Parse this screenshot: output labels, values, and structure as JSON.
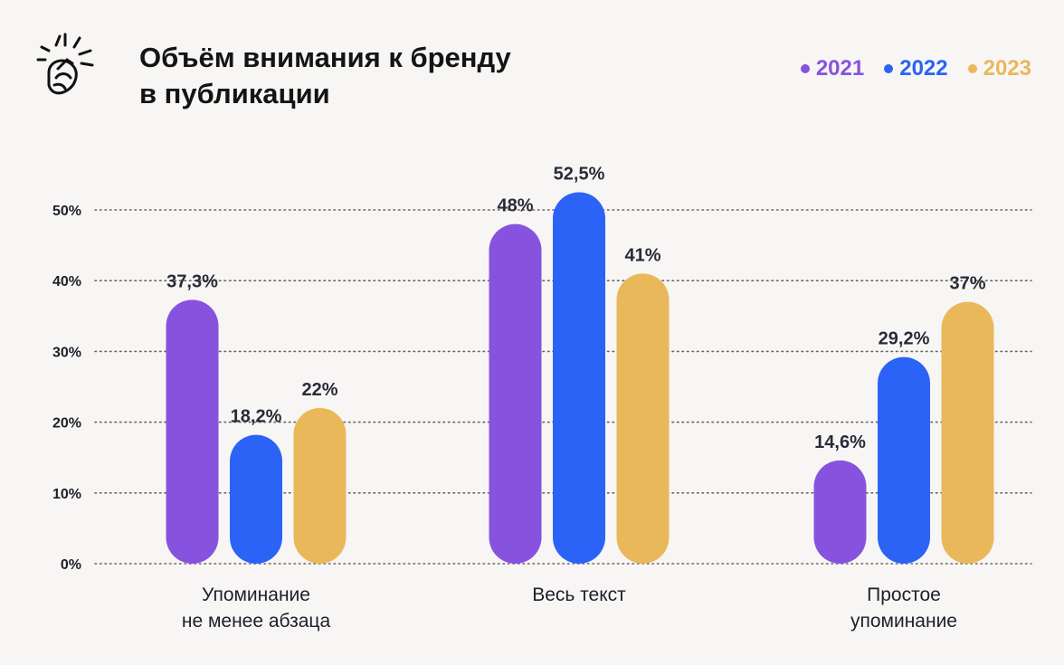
{
  "title": {
    "line1": "Объём внимания к бренду",
    "line2": "в публикации"
  },
  "icon": "hand-snap-icon",
  "colors": {
    "2021": "#8753DE",
    "2022": "#2B63F6",
    "2023": "#E9B85B",
    "text": "#1e1e2a",
    "grid": "#666666"
  },
  "chart_data": {
    "type": "bar",
    "title": "Объём внимания к бренду в публикации",
    "categories": [
      [
        "Упоминание",
        "не менее абзаца"
      ],
      [
        "Весь текст"
      ],
      [
        "Простое",
        "упоминание"
      ]
    ],
    "series": [
      {
        "name": "2021",
        "values": [
          37.3,
          48,
          14.6
        ],
        "labels": [
          "37,3%",
          "48%",
          "14,6%"
        ]
      },
      {
        "name": "2022",
        "values": [
          18.2,
          52.5,
          29.2
        ],
        "labels": [
          "18,2%",
          "52,5%",
          "29,2%"
        ]
      },
      {
        "name": "2023",
        "values": [
          22,
          41,
          37
        ],
        "labels": [
          "22%",
          "41%",
          "37%"
        ]
      }
    ],
    "yticks": [
      0,
      10,
      20,
      30,
      40,
      50
    ],
    "ytick_labels": [
      "0%",
      "10%",
      "20%",
      "30%",
      "40%",
      "50%"
    ],
    "ylim": [
      0,
      50
    ],
    "grid": "dotted",
    "legend": "top-right",
    "xlabel": "",
    "ylabel": ""
  }
}
